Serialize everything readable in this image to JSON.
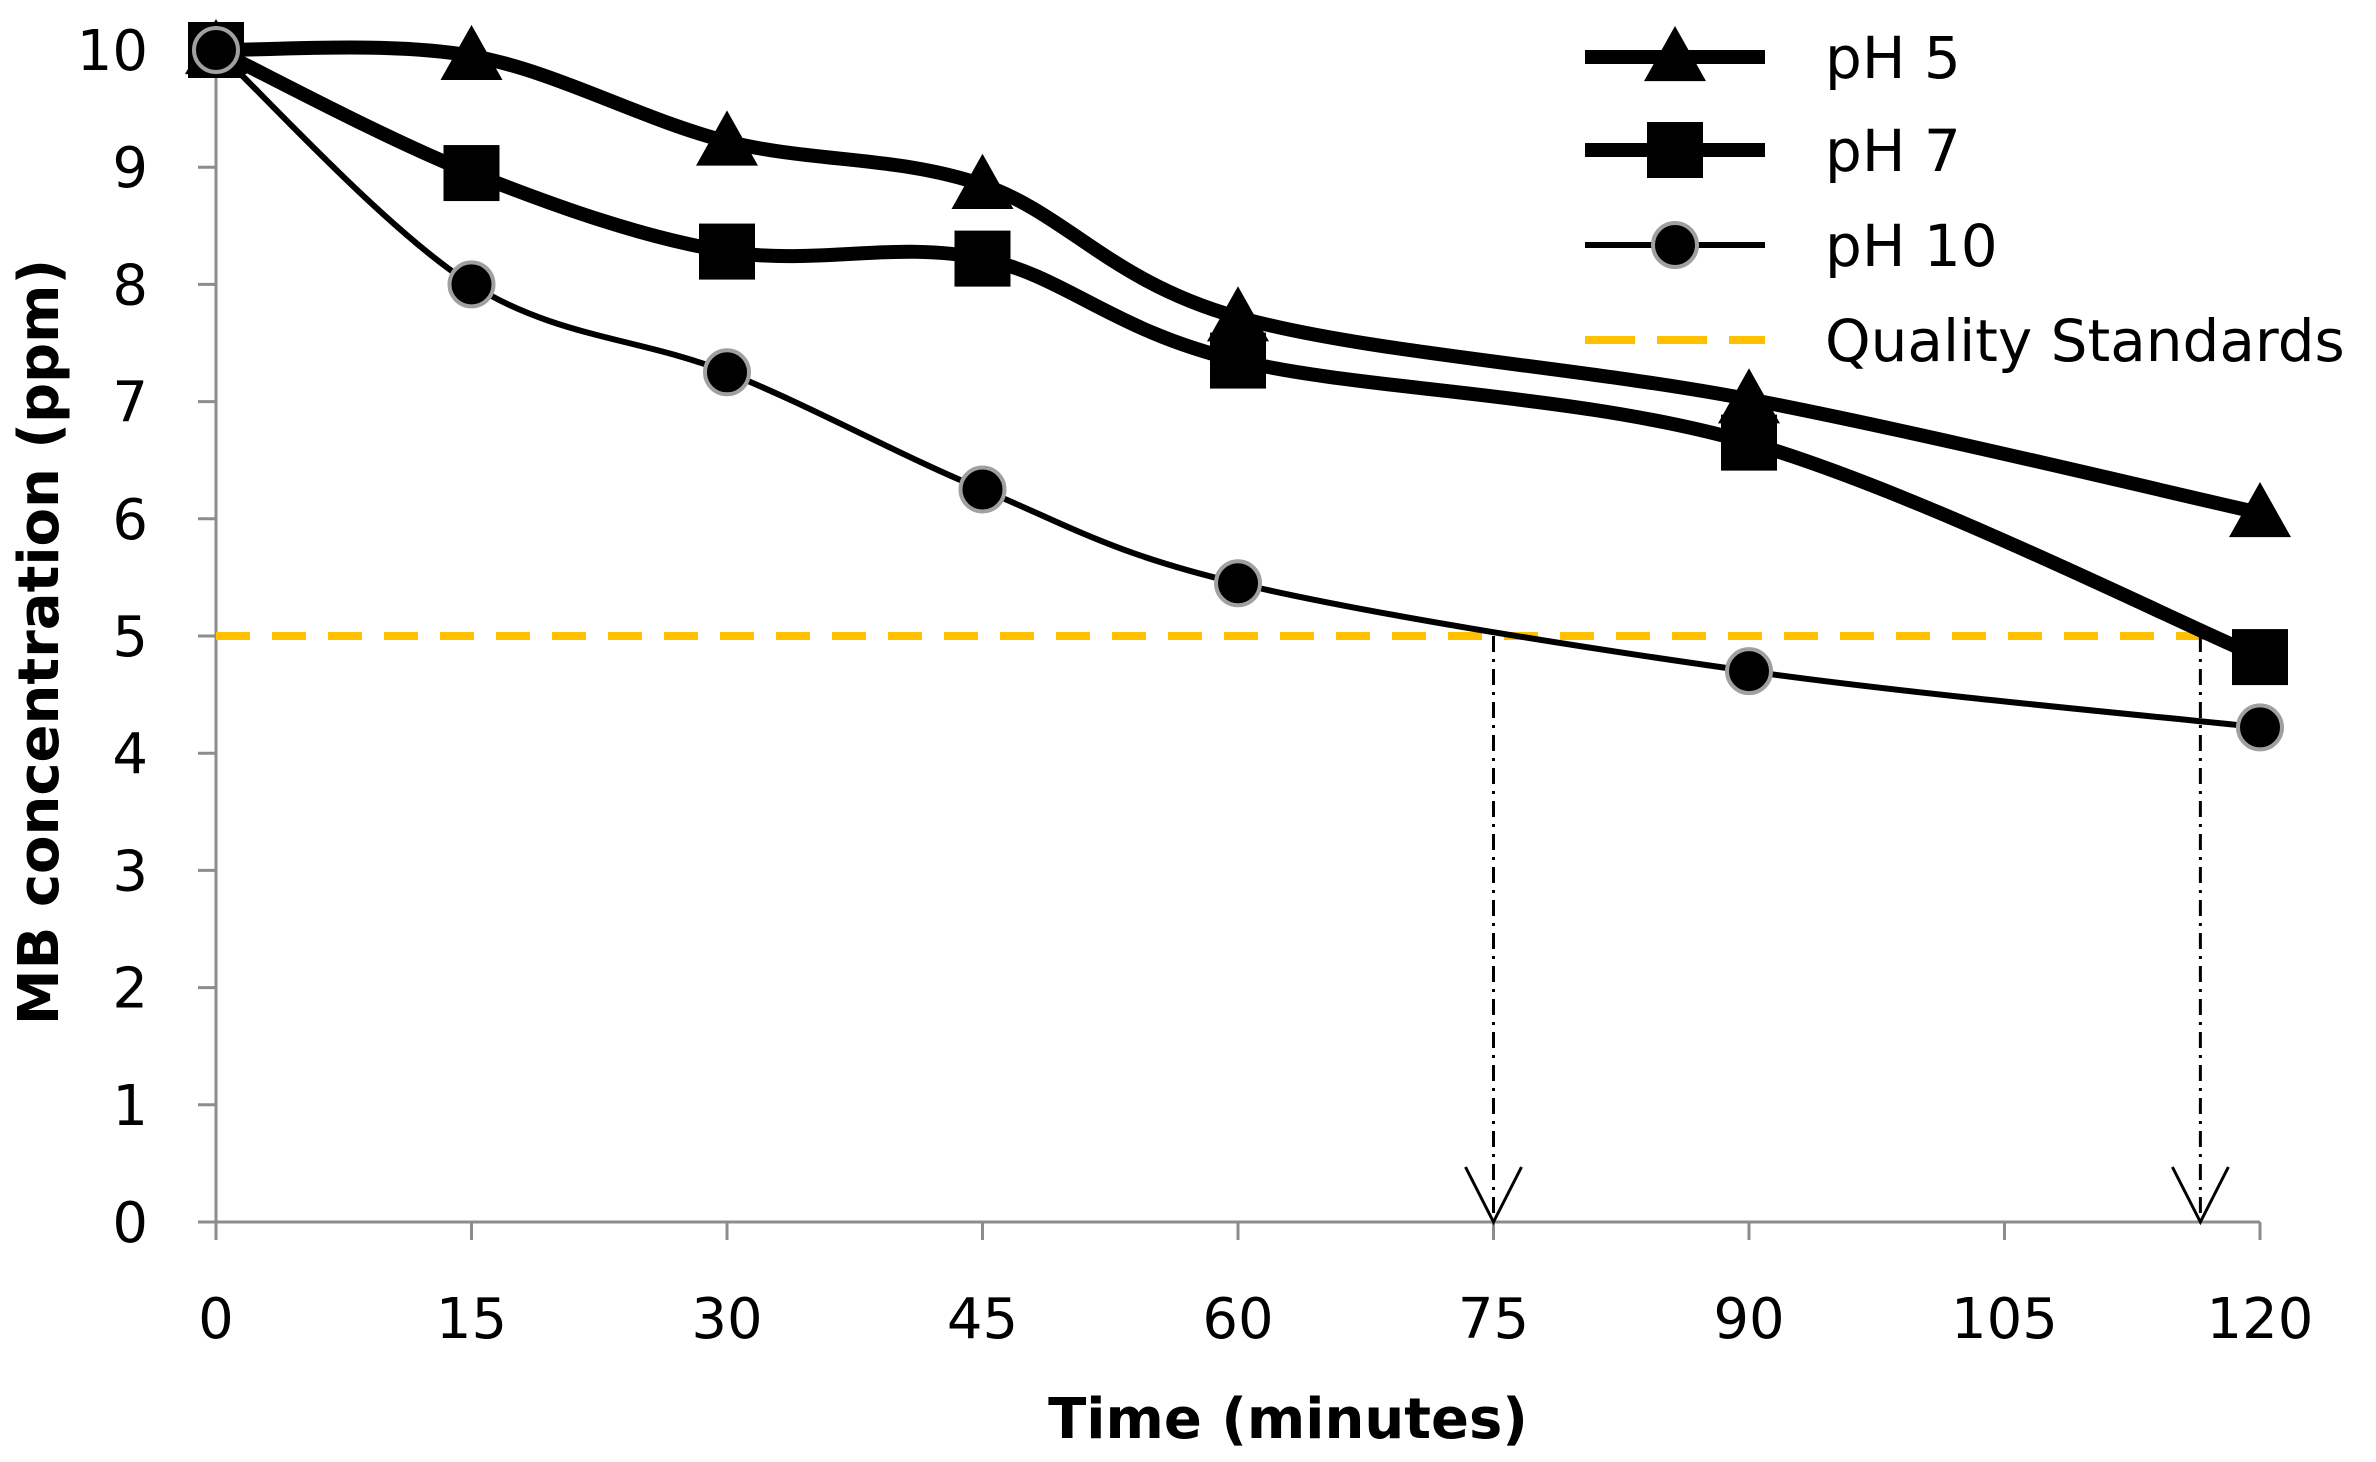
{
  "chart_data": {
    "type": "line",
    "title": "",
    "xlabel": "Time (minutes)",
    "ylabel": "MB concentration (ppm)",
    "xlim": [
      0,
      120
    ],
    "ylim": [
      0,
      10
    ],
    "x_ticks": [
      0,
      15,
      30,
      45,
      60,
      75,
      90,
      105,
      120
    ],
    "y_ticks": [
      0,
      1,
      2,
      3,
      4,
      5,
      6,
      7,
      8,
      9,
      10
    ],
    "x_tick_labels": [
      "0",
      "15",
      "30",
      "45",
      "60",
      "75",
      "90",
      "105",
      "120"
    ],
    "y_tick_labels": [
      "0",
      "1",
      "2",
      "3",
      "4",
      "5",
      "6",
      "7",
      "8",
      "9",
      "10"
    ],
    "grid": false,
    "legend_position": "top-right",
    "series": [
      {
        "name": "pH 5",
        "marker": "triangle",
        "color": "#000000",
        "x": [
          0,
          15,
          30,
          45,
          60,
          90,
          120
        ],
        "values": [
          10.0,
          9.95,
          9.22,
          8.85,
          7.72,
          7.02,
          6.05
        ]
      },
      {
        "name": "pH 7",
        "marker": "square",
        "color": "#000000",
        "x": [
          0,
          15,
          30,
          45,
          60,
          90,
          120
        ],
        "values": [
          10.0,
          8.95,
          8.28,
          8.22,
          7.35,
          6.65,
          4.82
        ]
      },
      {
        "name": "pH 10",
        "marker": "circle",
        "color": "#000000",
        "marker_edge": "#a0a0a0",
        "x": [
          0,
          15,
          30,
          45,
          60,
          90,
          120
        ],
        "values": [
          10.0,
          8.0,
          7.25,
          6.25,
          5.45,
          4.7,
          4.22
        ]
      },
      {
        "name": "Quality Standards",
        "style": "dashed",
        "color": "#FFC000",
        "x": [
          0,
          120
        ],
        "values": [
          5,
          5
        ]
      }
    ],
    "annotations": [
      {
        "type": "dash-dot-arrow",
        "x": 75,
        "from_y": 5,
        "to_y": 0
      },
      {
        "type": "dash-dot-arrow",
        "x": 116.5,
        "from_y": 5,
        "to_y": 0
      }
    ]
  }
}
